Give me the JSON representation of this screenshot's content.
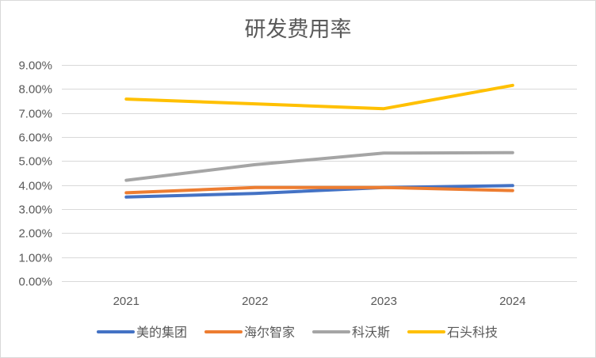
{
  "chart_data": {
    "type": "line",
    "title": "研发费用率",
    "xlabel": "",
    "ylabel": "",
    "categories": [
      "2021",
      "2022",
      "2023",
      "2024"
    ],
    "ylim": [
      0,
      0.09
    ],
    "y_ticks": [
      0,
      0.01,
      0.02,
      0.03,
      0.04,
      0.05,
      0.06,
      0.07,
      0.08,
      0.09
    ],
    "y_tick_labels": [
      "0.00%",
      "1.00%",
      "2.00%",
      "3.00%",
      "4.00%",
      "5.00%",
      "6.00%",
      "7.00%",
      "8.00%",
      "9.00%"
    ],
    "grid": "horizontal",
    "legend_position": "bottom",
    "series": [
      {
        "name": "美的集团",
        "color": "#4472C4",
        "values": [
          0.035,
          0.0365,
          0.039,
          0.0398
        ]
      },
      {
        "name": "海尔智家",
        "color": "#ED7D31",
        "values": [
          0.0368,
          0.039,
          0.039,
          0.0377
        ]
      },
      {
        "name": "科沃斯",
        "color": "#A5A5A5",
        "values": [
          0.042,
          0.0485,
          0.0533,
          0.0535
        ]
      },
      {
        "name": "石头科技",
        "color": "#FFC000",
        "values": [
          0.0758,
          0.0738,
          0.0718,
          0.0815
        ]
      }
    ]
  }
}
